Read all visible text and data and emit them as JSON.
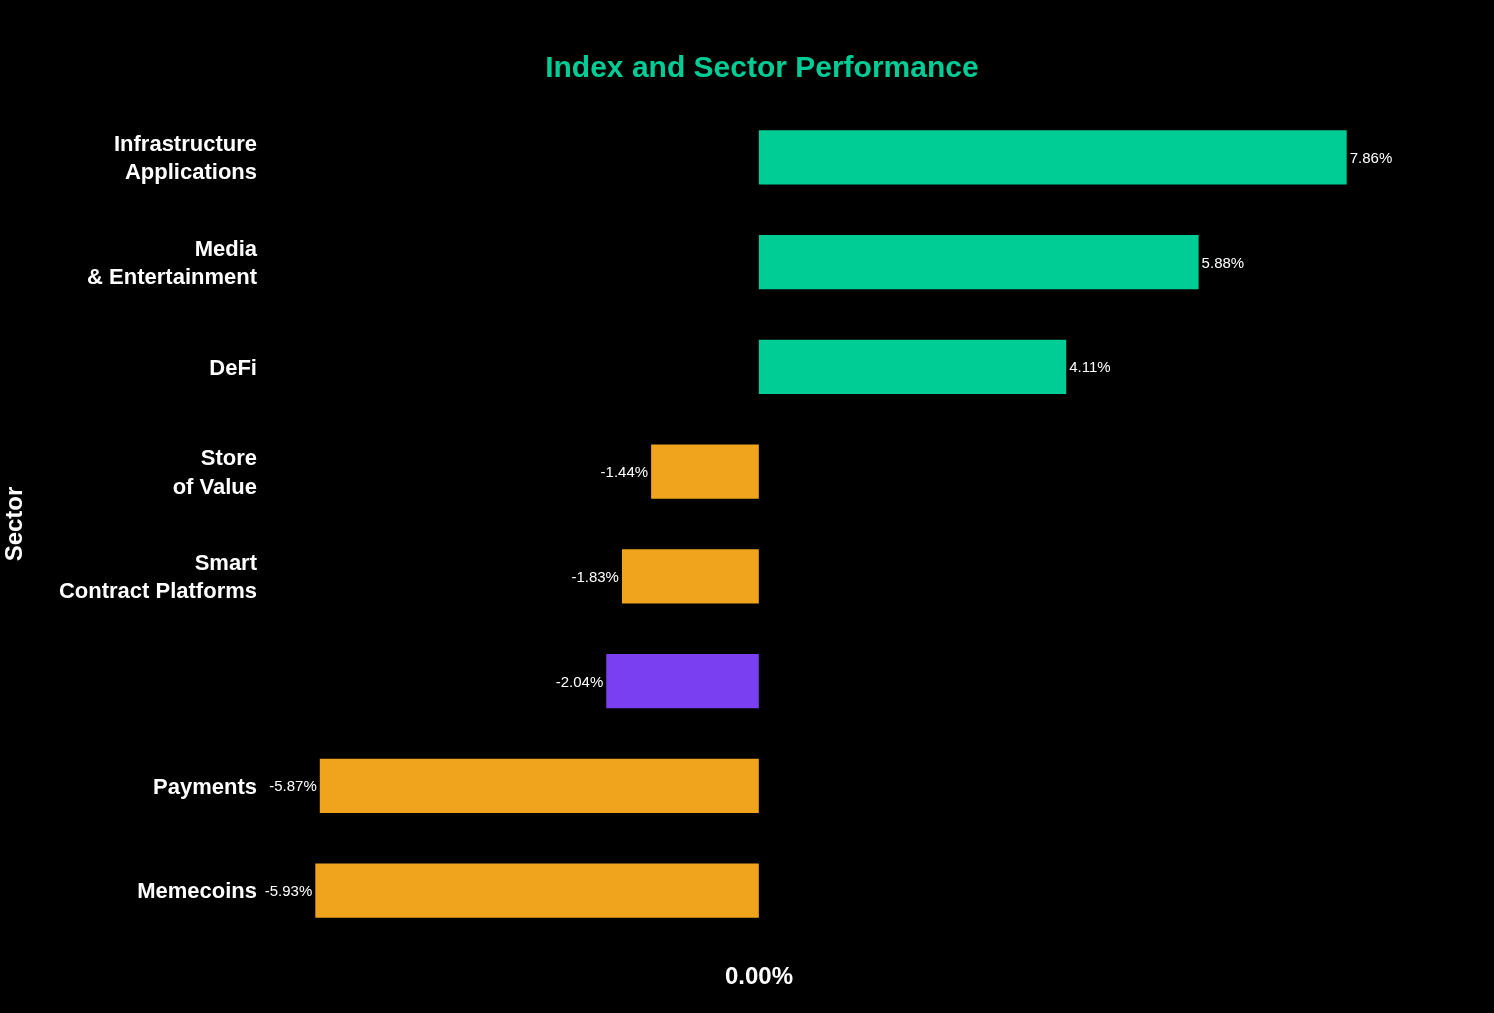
{
  "chart_data": {
    "type": "bar",
    "orientation": "horizontal",
    "title": "Index and Sector Performance",
    "ylabel": "Sector",
    "categories": [
      "Infrastructure\nApplications",
      "Media\n& Entertainment",
      "DeFi",
      "Store\nof Value",
      "Smart\nContract Platforms",
      null,
      "Payments",
      "Memecoins"
    ],
    "values": [
      7.86,
      5.88,
      4.11,
      -1.44,
      -1.83,
      -2.04,
      -5.87,
      -5.93
    ],
    "value_labels": [
      "7.86%",
      "5.88%",
      "4.11%",
      "-1.44%",
      "-1.83%",
      "-2.04%",
      "-5.87%",
      "-5.93%"
    ],
    "colors": [
      "#00cc96",
      "#00cc96",
      "#00cc96",
      "#f0a31c",
      "#f0a31c",
      "#7b3ff2",
      "#f0a31c",
      "#f0a31c"
    ],
    "annotations": [
      "0.00%"
    ]
  }
}
